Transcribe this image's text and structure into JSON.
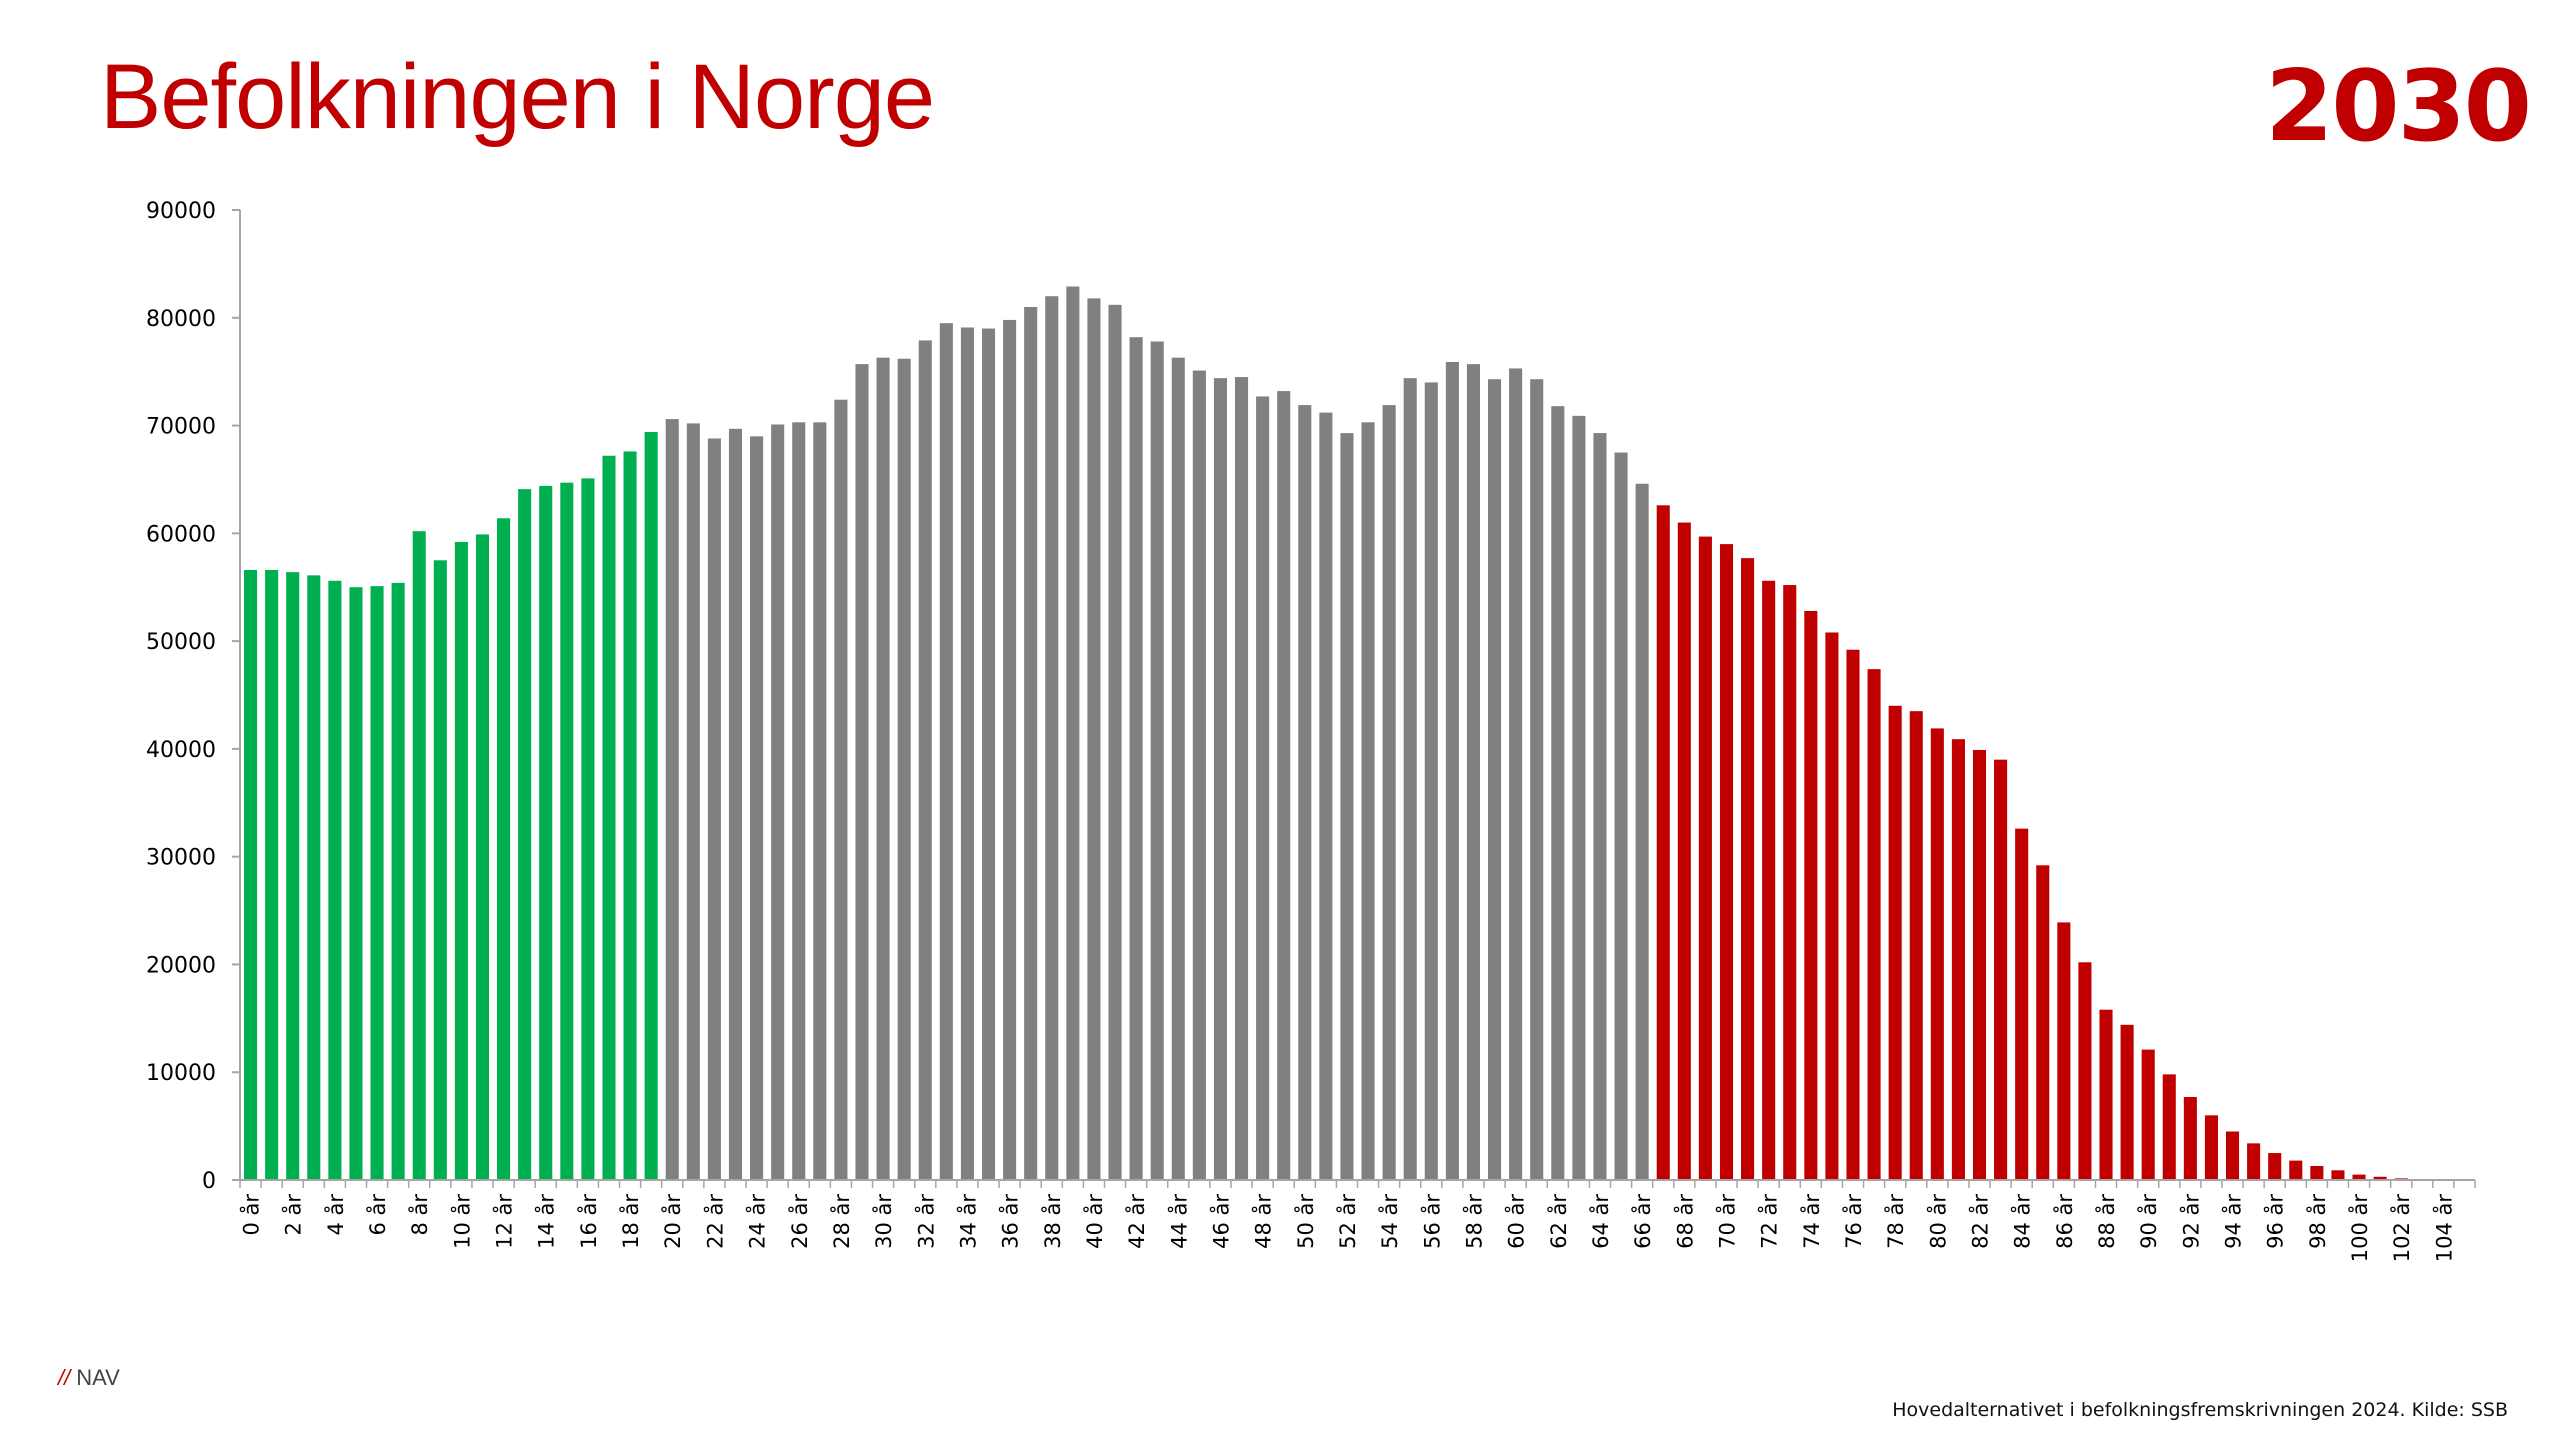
{
  "title": "Befolkningen i Norge",
  "year": "2030",
  "logo": {
    "slashes": "//",
    "text": "NAV"
  },
  "source": "Hovedalternativet i befolkningsfremskrivningen 2024. Kilde: SSB",
  "colors": {
    "title": "#c00000",
    "young": "#00b050",
    "working": "#808080",
    "old": "#c00000",
    "axis": "#a6a6a6"
  },
  "chart_data": {
    "type": "bar",
    "title": "Befolkningen i Norge",
    "xlabel": "",
    "ylabel": "",
    "ylim": [
      0,
      90000
    ],
    "yticks": [
      0,
      10000,
      20000,
      30000,
      40000,
      50000,
      60000,
      70000,
      80000,
      90000
    ],
    "grid": false,
    "legend": "none",
    "categories": [
      "0 år",
      "1 år",
      "2 år",
      "3 år",
      "4 år",
      "5 år",
      "6 år",
      "7 år",
      "8 år",
      "9 år",
      "10 år",
      "11 år",
      "12 år",
      "13 år",
      "14 år",
      "15 år",
      "16 år",
      "17 år",
      "18 år",
      "19 år",
      "20 år",
      "21 år",
      "22 år",
      "23 år",
      "24 år",
      "25 år",
      "26 år",
      "27 år",
      "28 år",
      "29 år",
      "30 år",
      "31 år",
      "32 år",
      "33 år",
      "34 år",
      "35 år",
      "36 år",
      "37 år",
      "38 år",
      "39 år",
      "40 år",
      "41 år",
      "42 år",
      "43 år",
      "44 år",
      "45 år",
      "46 år",
      "47 år",
      "48 år",
      "49 år",
      "50 år",
      "51 år",
      "52 år",
      "53 år",
      "54 år",
      "55 år",
      "56 år",
      "57 år",
      "58 år",
      "59 år",
      "60 år",
      "61 år",
      "62 år",
      "63 år",
      "64 år",
      "65 år",
      "66 år",
      "67 år",
      "68 år",
      "69 år",
      "70 år",
      "71 år",
      "72 år",
      "73 år",
      "74 år",
      "75 år",
      "76 år",
      "77 år",
      "78 år",
      "79 år",
      "80 år",
      "81 år",
      "82 år",
      "83 år",
      "84 år",
      "85 år",
      "86 år",
      "87 år",
      "88 år",
      "89 år",
      "90 år",
      "91 år",
      "92 år",
      "93 år",
      "94 år",
      "95 år",
      "96 år",
      "97 år",
      "98 år",
      "99 år",
      "100 år",
      "101 år",
      "102 år",
      "103 år",
      "104 år",
      "105 år"
    ],
    "tick_labels_shown": [
      "0 år",
      "2 år",
      "4 år",
      "6 år",
      "8 år",
      "10 år",
      "12 år",
      "14 år",
      "16 år",
      "18 år",
      "20 år",
      "22 år",
      "24 år",
      "26 år",
      "28 år",
      "30 år",
      "32 år",
      "34 år",
      "36 år",
      "38 år",
      "40 år",
      "42 år",
      "44 år",
      "46 år",
      "48 år",
      "50 år",
      "52 år",
      "54 år",
      "56 år",
      "58 år",
      "60 år",
      "62 år",
      "64 år",
      "66 år",
      "68 år",
      "70 år",
      "72 år",
      "74 år",
      "76 år",
      "78 år",
      "80 år",
      "82 år",
      "84 år",
      "86 år",
      "88 år",
      "90 år",
      "92 år",
      "94 år",
      "96 år",
      "98 år",
      "100 år",
      "102 år",
      "104 år"
    ],
    "values": [
      56600,
      56600,
      56400,
      56100,
      55600,
      55000,
      55100,
      55400,
      60200,
      57500,
      59200,
      59900,
      61400,
      64100,
      64400,
      64700,
      65100,
      67200,
      67600,
      69400,
      70600,
      70200,
      68800,
      69700,
      69000,
      70100,
      70300,
      70300,
      72400,
      75700,
      76300,
      76200,
      77900,
      79500,
      79100,
      79000,
      79800,
      81000,
      82000,
      82900,
      81800,
      81200,
      78200,
      77800,
      76300,
      75100,
      74400,
      74500,
      72700,
      73200,
      71900,
      71200,
      69300,
      70300,
      71900,
      74400,
      74000,
      75900,
      75700,
      74300,
      75300,
      74300,
      71800,
      70900,
      69300,
      67500,
      64600,
      62600,
      61000,
      59700,
      59000,
      57700,
      55600,
      55200,
      52800,
      50800,
      49200,
      47400,
      44000,
      43500,
      41900,
      40900,
      39900,
      39000,
      32600,
      29200,
      23900,
      20200,
      15800,
      14400,
      12100,
      9800,
      7700,
      6000,
      4500,
      3400,
      2500,
      1800,
      1300,
      900,
      500,
      300,
      150,
      60,
      20,
      5
    ],
    "series_colors_by_range": [
      {
        "from": "0 år",
        "to": "19 år",
        "color": "#00b050"
      },
      {
        "from": "20 år",
        "to": "66 år",
        "color": "#808080"
      },
      {
        "from": "67 år",
        "to": "105 år",
        "color": "#c00000"
      }
    ]
  }
}
